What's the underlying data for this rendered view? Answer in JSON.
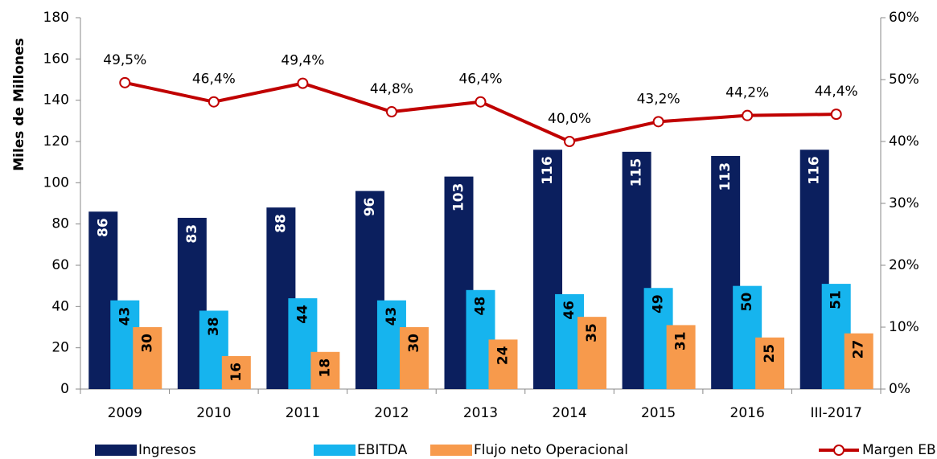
{
  "chart_data": {
    "type": "bar-line",
    "y_label": "Miles de Millones",
    "categories": [
      "2009",
      "2010",
      "2011",
      "2012",
      "2013",
      "2014",
      "2015",
      "2016",
      "III-2017"
    ],
    "series": [
      {
        "name": "Ingresos",
        "color": "#0b1f5e",
        "values": [
          86,
          83,
          88,
          96,
          103,
          116,
          115,
          113,
          116
        ]
      },
      {
        "name": "EBITDA",
        "color": "#16b4ee",
        "values": [
          43,
          38,
          44,
          43,
          48,
          46,
          49,
          50,
          51
        ]
      },
      {
        "name": "Flujo neto Operacional",
        "color": "#f79a4c",
        "values": [
          30,
          16,
          18,
          30,
          24,
          35,
          31,
          25,
          27
        ]
      },
      {
        "name": "Margen EBITDA",
        "color": "#c00000",
        "axis": "y2",
        "type": "line",
        "values": [
          49.5,
          46.4,
          49.4,
          44.8,
          46.4,
          40.0,
          43.2,
          44.2,
          44.4
        ],
        "value_labels": [
          "49,5%",
          "46,4%",
          "49,4%",
          "44,8%",
          "46,4%",
          "40,0%",
          "43,2%",
          "44,2%",
          "44,4%"
        ]
      }
    ],
    "ylim": [
      0,
      180
    ],
    "yticks": [
      0,
      20,
      40,
      60,
      80,
      100,
      120,
      140,
      160,
      180
    ],
    "y2lim": [
      0,
      60
    ],
    "y2ticks": [
      {
        "value": 0,
        "label": "0%"
      },
      {
        "value": 10,
        "label": "10%"
      },
      {
        "value": 20,
        "label": "20%"
      },
      {
        "value": 30,
        "label": "30%"
      },
      {
        "value": 40,
        "label": "40%"
      },
      {
        "value": 50,
        "label": "50%"
      },
      {
        "value": 60,
        "label": "60%"
      }
    ],
    "legend": "bottom"
  }
}
